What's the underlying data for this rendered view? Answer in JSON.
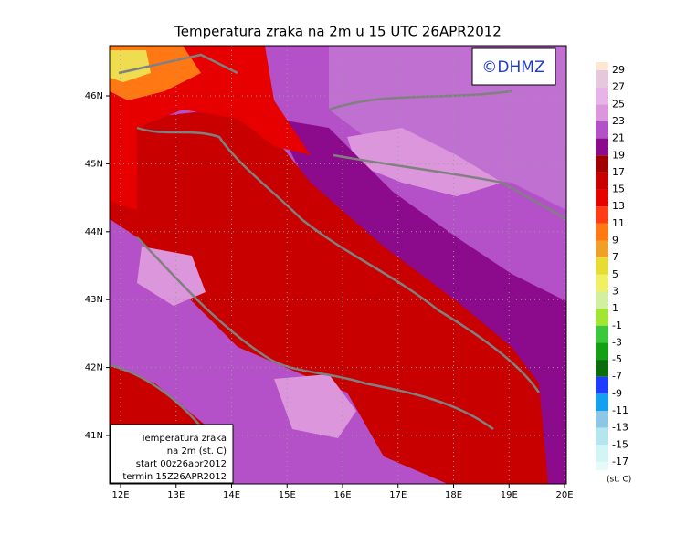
{
  "title": "Temperatura zraka na 2m u 15 UTC 26APR2012",
  "copyright": "©DHMZ",
  "map": {
    "lat_labels": [
      "46N",
      "45N",
      "44N",
      "43N",
      "42N",
      "41N"
    ],
    "lon_labels": [
      "12E",
      "13E",
      "14E",
      "15E",
      "16E",
      "17E",
      "18E",
      "19E",
      "20E"
    ]
  },
  "info_box": [
    "Temperatura zraka",
    "na 2m (st. C)",
    "start 00z26apr2012",
    "termin 15Z26APR2012"
  ],
  "colorbar": {
    "levels": [
      29,
      27,
      25,
      23,
      21,
      19,
      17,
      15,
      13,
      11,
      9,
      7,
      5,
      3,
      1,
      -1,
      -3,
      -5,
      -7,
      -9,
      -11,
      -13,
      -15,
      -17
    ],
    "colors": [
      "#fde6d2",
      "#e6c8dc",
      "#e6b4e6",
      "#dc96dc",
      "#b450c8",
      "#8c0a8c",
      "#a00000",
      "#c80000",
      "#e60000",
      "#ff3c14",
      "#ff7814",
      "#f0a028",
      "#e6dc32",
      "#f0f064",
      "#d2f0a0",
      "#a0e632",
      "#3cc83c",
      "#14a014",
      "#0a6e0a",
      "#1e3cff",
      "#14a0f0",
      "#8cc8e6",
      "#b4e6f0",
      "#d2f5f5",
      "#e6fafa"
    ],
    "unit": "(st. C)"
  }
}
